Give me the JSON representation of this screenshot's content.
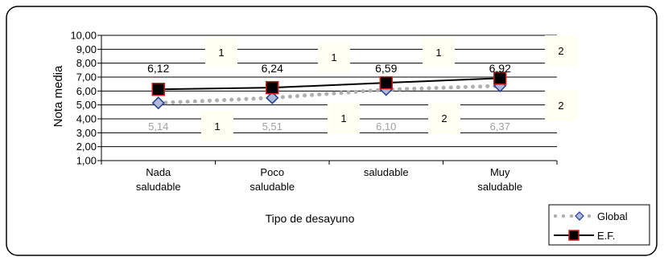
{
  "chart_data": {
    "type": "line",
    "categories": [
      [
        "Nada",
        "saludable"
      ],
      [
        "Poco",
        "saludable"
      ],
      [
        "saludable"
      ],
      [
        "Muy",
        "saludable"
      ]
    ],
    "ylabel": "Nota media",
    "xlabel": "Tipo de desayuno",
    "ylim": [
      1,
      10
    ],
    "yticks": [
      "1,00",
      "2,00",
      "3,00",
      "4,00",
      "5,00",
      "6,00",
      "7,00",
      "8,00",
      "9,00",
      "10,00"
    ],
    "grid": true,
    "legend_position": "bottom-right",
    "series": [
      {
        "name": "Global",
        "values": [
          5.14,
          5.51,
          6.1,
          6.37
        ],
        "labels": [
          "5,14",
          "5,51",
          "6,10",
          "6,37"
        ],
        "color": "#b0b0b0",
        "marker_color": "#1f3f8f",
        "style": "dotted"
      },
      {
        "name": "E.F.",
        "values": [
          6.12,
          6.24,
          6.59,
          6.92
        ],
        "labels": [
          "6,12",
          "6,24",
          "6,59",
          "6,92"
        ],
        "color": "#000000",
        "marker_color": "#000000",
        "marker_edge": "#cc2222",
        "style": "solid"
      }
    ],
    "annotations": [
      "1",
      "1",
      "1",
      "2",
      "1",
      "1",
      "2",
      "2"
    ]
  }
}
